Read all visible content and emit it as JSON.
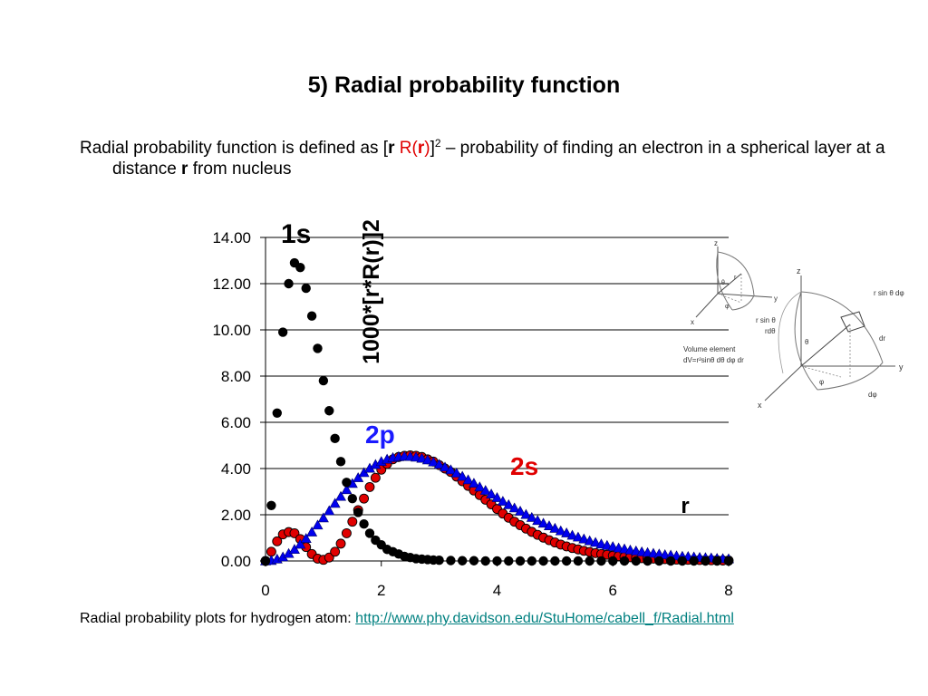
{
  "slide": {
    "title": "5) Radial probability function",
    "definition": {
      "p1": "Radial probability function is defined as [",
      "r1": "r",
      "R": "R(",
      "r2": "r",
      "Rclose": ")",
      "close": "]",
      "sup": "2",
      "p2": " – probability of finding an electron in a spherical layer at a distance ",
      "r3": "r",
      "p3": " from nucleus"
    },
    "caption": {
      "text": "Radial probability plots for hydrogen atom: ",
      "link": "http://www.phy.davidson.edu/StuHome/cabell_f/Radial.html"
    }
  },
  "chart_data": {
    "type": "scatter",
    "ylabel": "1000*[r*R(r)]2",
    "xlabel": "r",
    "xlim": [
      0,
      8
    ],
    "ylim": [
      0,
      14
    ],
    "x_ticks": [
      "0",
      "2",
      "4",
      "6",
      "8"
    ],
    "y_ticks": [
      "0.00",
      "2.00",
      "4.00",
      "6.00",
      "8.00",
      "10.00",
      "12.00",
      "14.00"
    ],
    "grid": "horizontal",
    "series": [
      {
        "name": "1s",
        "color": "#000000",
        "marker": "circle",
        "label_color": "#000000",
        "x": [
          0,
          0.1,
          0.2,
          0.3,
          0.4,
          0.5,
          0.6,
          0.7,
          0.8,
          0.9,
          1.0,
          1.1,
          1.2,
          1.3,
          1.4,
          1.5,
          1.6,
          1.7,
          1.8,
          1.9,
          2.0,
          2.1,
          2.2,
          2.3,
          2.4,
          2.5,
          2.6,
          2.7,
          2.8,
          2.9,
          3.0,
          3.2,
          3.4,
          3.6,
          3.8,
          4.0,
          4.2,
          4.4,
          4.6,
          4.8,
          5.0,
          5.2,
          5.4,
          5.6,
          5.8,
          6.0,
          6.2,
          6.4,
          6.6,
          6.8,
          7.0,
          7.2,
          7.4,
          7.6,
          7.8,
          8.0
        ],
        "y": [
          0.0,
          2.4,
          6.4,
          9.9,
          12.0,
          12.9,
          12.7,
          11.8,
          10.6,
          9.2,
          7.8,
          6.5,
          5.3,
          4.3,
          3.4,
          2.7,
          2.1,
          1.6,
          1.2,
          0.9,
          0.7,
          0.5,
          0.4,
          0.3,
          0.2,
          0.15,
          0.1,
          0.08,
          0.06,
          0.04,
          0.03,
          0.02,
          0.01,
          0.01,
          0.0,
          0.0,
          0.0,
          0.0,
          0.0,
          0.0,
          0.0,
          0.0,
          0.0,
          0.0,
          0.0,
          0.0,
          0.0,
          0.0,
          0.0,
          0.0,
          0.0,
          0.0,
          0.0,
          0.0,
          0.0,
          0.0
        ]
      },
      {
        "name": "2s",
        "color": "#e00000",
        "marker": "circle",
        "label_color": "#e00000",
        "x": [
          0,
          0.1,
          0.2,
          0.3,
          0.4,
          0.5,
          0.6,
          0.7,
          0.8,
          0.9,
          1.0,
          1.1,
          1.2,
          1.3,
          1.4,
          1.5,
          1.6,
          1.7,
          1.8,
          1.9,
          2.0,
          2.1,
          2.2,
          2.3,
          2.4,
          2.5,
          2.6,
          2.7,
          2.8,
          2.9,
          3.0,
          3.1,
          3.2,
          3.3,
          3.4,
          3.5,
          3.6,
          3.7,
          3.8,
          3.9,
          4.0,
          4.1,
          4.2,
          4.3,
          4.4,
          4.5,
          4.6,
          4.7,
          4.8,
          4.9,
          5.0,
          5.1,
          5.2,
          5.3,
          5.4,
          5.5,
          5.6,
          5.7,
          5.8,
          5.9,
          6.0,
          6.1,
          6.2,
          6.3,
          6.4,
          6.5,
          6.6,
          6.7,
          6.8,
          6.9,
          7.0,
          7.1,
          7.2,
          7.3,
          7.4,
          7.5,
          7.6,
          7.7,
          7.8,
          7.9,
          8.0
        ],
        "y": [
          0.0,
          0.4,
          0.85,
          1.15,
          1.25,
          1.2,
          0.95,
          0.6,
          0.3,
          0.1,
          0.05,
          0.15,
          0.4,
          0.75,
          1.2,
          1.7,
          2.2,
          2.7,
          3.2,
          3.6,
          3.95,
          4.2,
          4.4,
          4.5,
          4.55,
          4.57,
          4.55,
          4.5,
          4.4,
          4.3,
          4.15,
          4.0,
          3.85,
          3.65,
          3.45,
          3.25,
          3.05,
          2.85,
          2.65,
          2.45,
          2.25,
          2.05,
          1.87,
          1.7,
          1.55,
          1.4,
          1.26,
          1.13,
          1.01,
          0.9,
          0.8,
          0.71,
          0.63,
          0.56,
          0.5,
          0.44,
          0.39,
          0.34,
          0.3,
          0.27,
          0.23,
          0.21,
          0.18,
          0.16,
          0.14,
          0.12,
          0.11,
          0.1,
          0.09,
          0.08,
          0.07,
          0.06,
          0.05,
          0.05,
          0.04,
          0.04,
          0.03,
          0.03,
          0.03,
          0.02,
          0.02
        ]
      },
      {
        "name": "2p",
        "color": "#0000ee",
        "marker": "triangle",
        "label_color": "#1a1aff",
        "x": [
          0,
          0.1,
          0.2,
          0.3,
          0.4,
          0.5,
          0.6,
          0.7,
          0.8,
          0.9,
          1.0,
          1.1,
          1.2,
          1.3,
          1.4,
          1.5,
          1.6,
          1.7,
          1.8,
          1.9,
          2.0,
          2.1,
          2.2,
          2.3,
          2.4,
          2.5,
          2.6,
          2.7,
          2.8,
          2.9,
          3.0,
          3.1,
          3.2,
          3.3,
          3.4,
          3.5,
          3.6,
          3.7,
          3.8,
          3.9,
          4.0,
          4.1,
          4.2,
          4.3,
          4.4,
          4.5,
          4.6,
          4.7,
          4.8,
          4.9,
          5.0,
          5.1,
          5.2,
          5.3,
          5.4,
          5.5,
          5.6,
          5.7,
          5.8,
          5.9,
          6.0,
          6.1,
          6.2,
          6.3,
          6.4,
          6.5,
          6.6,
          6.7,
          6.8,
          6.9,
          7.0,
          7.1,
          7.2,
          7.3,
          7.4,
          7.5,
          7.6,
          7.7,
          7.8,
          7.9,
          8.0
        ],
        "y": [
          0.0,
          0.02,
          0.08,
          0.17,
          0.32,
          0.5,
          0.72,
          0.97,
          1.25,
          1.55,
          1.86,
          2.17,
          2.49,
          2.79,
          3.08,
          3.35,
          3.6,
          3.82,
          4.01,
          4.17,
          4.3,
          4.4,
          4.47,
          4.51,
          4.53,
          4.52,
          4.49,
          4.44,
          4.37,
          4.28,
          4.18,
          4.06,
          3.94,
          3.8,
          3.66,
          3.51,
          3.36,
          3.2,
          3.05,
          2.89,
          2.74,
          2.58,
          2.43,
          2.29,
          2.15,
          2.01,
          1.88,
          1.75,
          1.63,
          1.52,
          1.41,
          1.3,
          1.21,
          1.11,
          1.03,
          0.95,
          0.87,
          0.8,
          0.73,
          0.67,
          0.62,
          0.56,
          0.52,
          0.47,
          0.43,
          0.39,
          0.36,
          0.33,
          0.3,
          0.27,
          0.25,
          0.22,
          0.2,
          0.19,
          0.17,
          0.15,
          0.14,
          0.13,
          0.11,
          0.1,
          0.09
        ]
      }
    ]
  },
  "figure": {
    "diagram_small": {
      "labels": [
        "z",
        "y",
        "x",
        "θ",
        "φ",
        "r"
      ]
    },
    "diagram_large": {
      "labels": [
        "z",
        "y",
        "x",
        "r sin θ dφ",
        "r sin θ",
        "rdθ",
        "dr",
        "θ",
        "φ",
        "dφ"
      ],
      "volume_title": "Volume element",
      "volume_formula": "dV=r²sinθ dθ dφ dr"
    }
  }
}
